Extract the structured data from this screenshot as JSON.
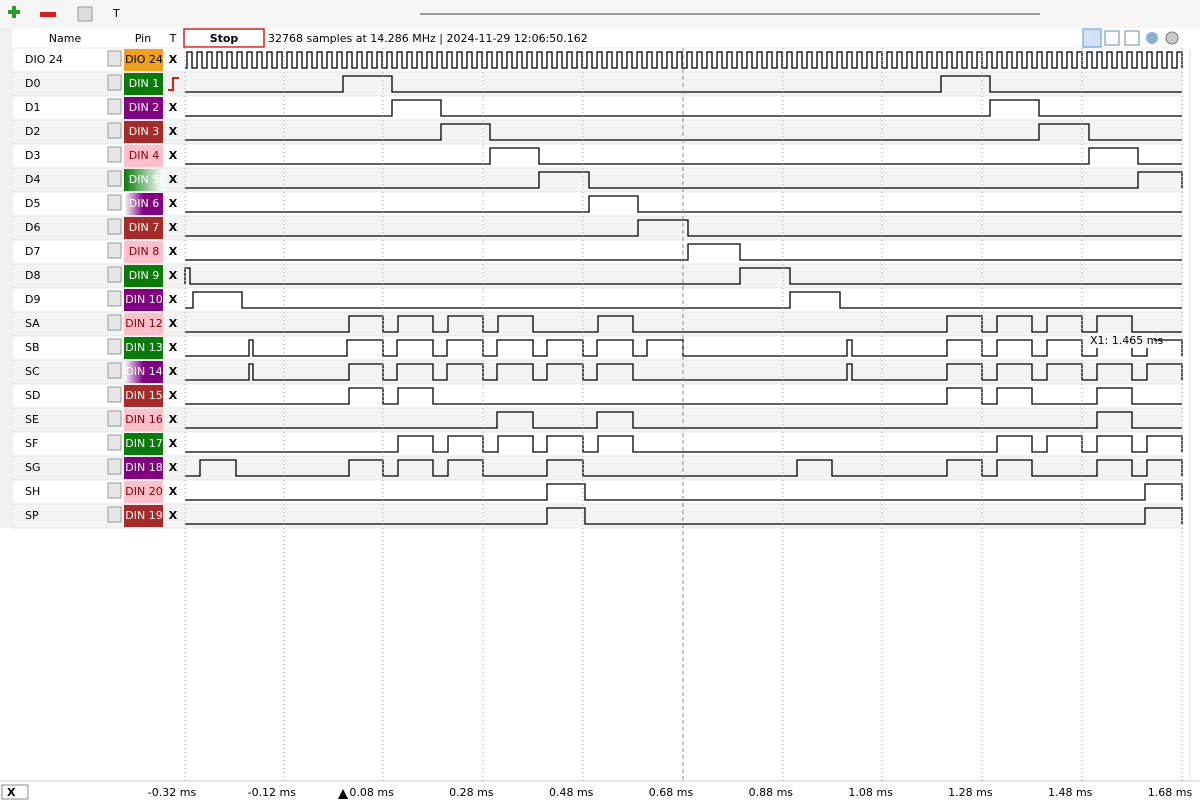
{
  "header": {
    "name": "Name",
    "pin": "Pin",
    "trigger": "T",
    "stop": "Stop",
    "info": "32768 samples at 14.286 MHz | 2024-11-29 12:06:50.162"
  },
  "toolbar": {
    "text_tool": "T"
  },
  "rows": [
    {
      "name": "DIO 24",
      "pin": "DIO 24",
      "trigger": "X"
    },
    {
      "name": "D0",
      "pin": "DIN  1"
    },
    {
      "name": "D1",
      "pin": "DIN  2",
      "trigger": "X"
    },
    {
      "name": "D2",
      "pin": "DIN  3",
      "trigger": "X"
    },
    {
      "name": "D3",
      "pin": "DIN  4",
      "trigger": "X"
    },
    {
      "name": "D4",
      "pin": "DIN  5",
      "trigger": "X"
    },
    {
      "name": "D5",
      "pin": "DIN  6",
      "trigger": "X"
    },
    {
      "name": "D6",
      "pin": "DIN  7",
      "trigger": "X"
    },
    {
      "name": "D7",
      "pin": "DIN  8",
      "trigger": "X"
    },
    {
      "name": "D8",
      "pin": "DIN  9",
      "trigger": "X"
    },
    {
      "name": "D9",
      "pin": "DIN 10",
      "trigger": "X"
    },
    {
      "name": "SA",
      "pin": "DIN 12",
      "trigger": "X"
    },
    {
      "name": "SB",
      "pin": "DIN 13",
      "trigger": "X"
    },
    {
      "name": "SC",
      "pin": "DIN 14",
      "trigger": "X"
    },
    {
      "name": "SD",
      "pin": "DIN 15",
      "trigger": "X"
    },
    {
      "name": "SE",
      "pin": "DIN 16",
      "trigger": "X"
    },
    {
      "name": "SF",
      "pin": "DIN 17",
      "trigger": "X"
    },
    {
      "name": "SG",
      "pin": "DIN 18",
      "trigger": "X"
    },
    {
      "name": "SH",
      "pin": "DIN 20",
      "trigger": "X"
    },
    {
      "name": "SP",
      "pin": "DIN 19",
      "trigger": "X"
    }
  ],
  "cursor": {
    "label": "X1: 1.465 ms"
  },
  "time_axis": [
    "-0.32 ms",
    "-0.12 ms",
    "0.08 ms",
    "0.28 ms",
    "0.48 ms",
    "0.68 ms",
    "0.88 ms",
    "1.08 ms",
    "1.28 ms",
    "1.48 ms",
    "1.68 ms"
  ],
  "footer": {
    "trigger": "X"
  }
}
